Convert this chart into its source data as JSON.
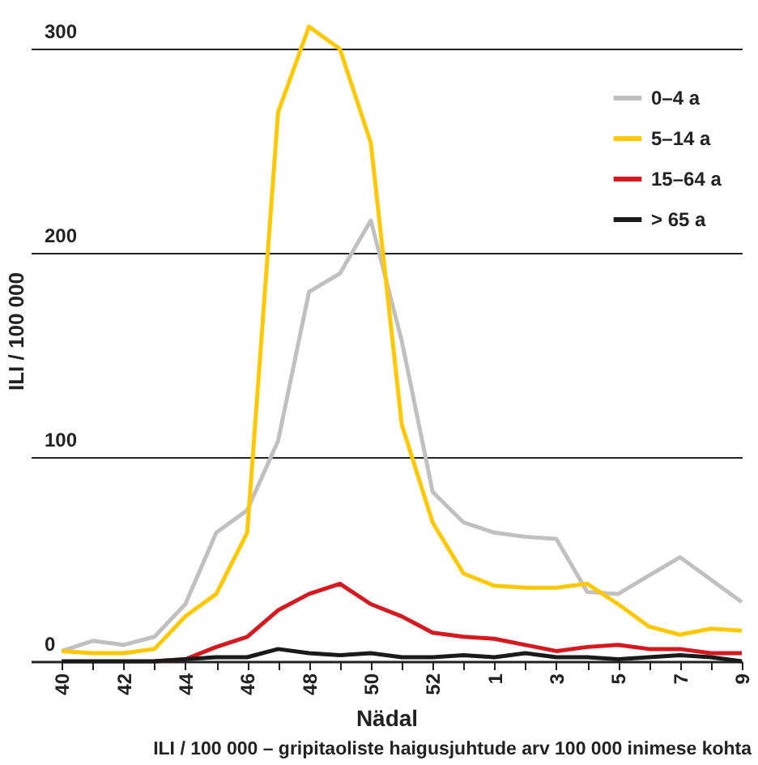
{
  "chart_data": {
    "type": "line",
    "xlabel": "Nädal",
    "ylabel": "ILI / 100 000",
    "annotations": [
      "ILI / 100 000 – gripitaoliste haigusjuhtude arv 100 000 inimese kohta"
    ],
    "categories": [
      "40",
      null,
      "42",
      null,
      "44",
      null,
      "46",
      null,
      "48",
      null,
      "50",
      null,
      "52",
      null,
      "1",
      null,
      "3",
      null,
      "5",
      null,
      "7",
      null,
      "9"
    ],
    "series": [
      {
        "name": "0–4 a",
        "color": "#c0c0c0",
        "values": [
          5,
          10,
          8,
          12,
          28,
          63,
          74,
          108,
          181,
          190,
          216,
          157,
          83,
          68,
          63,
          61,
          60,
          34,
          33,
          42,
          51,
          40,
          29
        ]
      },
      {
        "name": "5–14 a",
        "color": "#ffc800",
        "values": [
          5,
          4,
          4,
          6,
          22,
          33,
          63,
          269,
          311,
          300,
          254,
          116,
          68,
          43,
          37,
          36,
          36,
          38,
          28,
          17,
          13,
          16,
          15
        ]
      },
      {
        "name": "15–64 a",
        "color": "#d7191f",
        "values": [
          null,
          null,
          null,
          0,
          1,
          7,
          12,
          25,
          33,
          38,
          28,
          22,
          14,
          12,
          11,
          8,
          5,
          7,
          8,
          6,
          6,
          4,
          4
        ]
      },
      {
        "name": "> 65 a",
        "color": "#1a1a1a",
        "values": [
          0,
          0,
          0,
          0,
          1,
          2,
          2,
          6,
          4,
          3,
          4,
          2,
          2,
          3,
          2,
          4,
          2,
          2,
          1,
          2,
          3,
          2,
          0
        ]
      }
    ],
    "ylim": [
      0,
      324
    ],
    "yticks": [
      0,
      100,
      200,
      300
    ],
    "grid": "y",
    "legend": "top right",
    "line_style": "solid"
  }
}
